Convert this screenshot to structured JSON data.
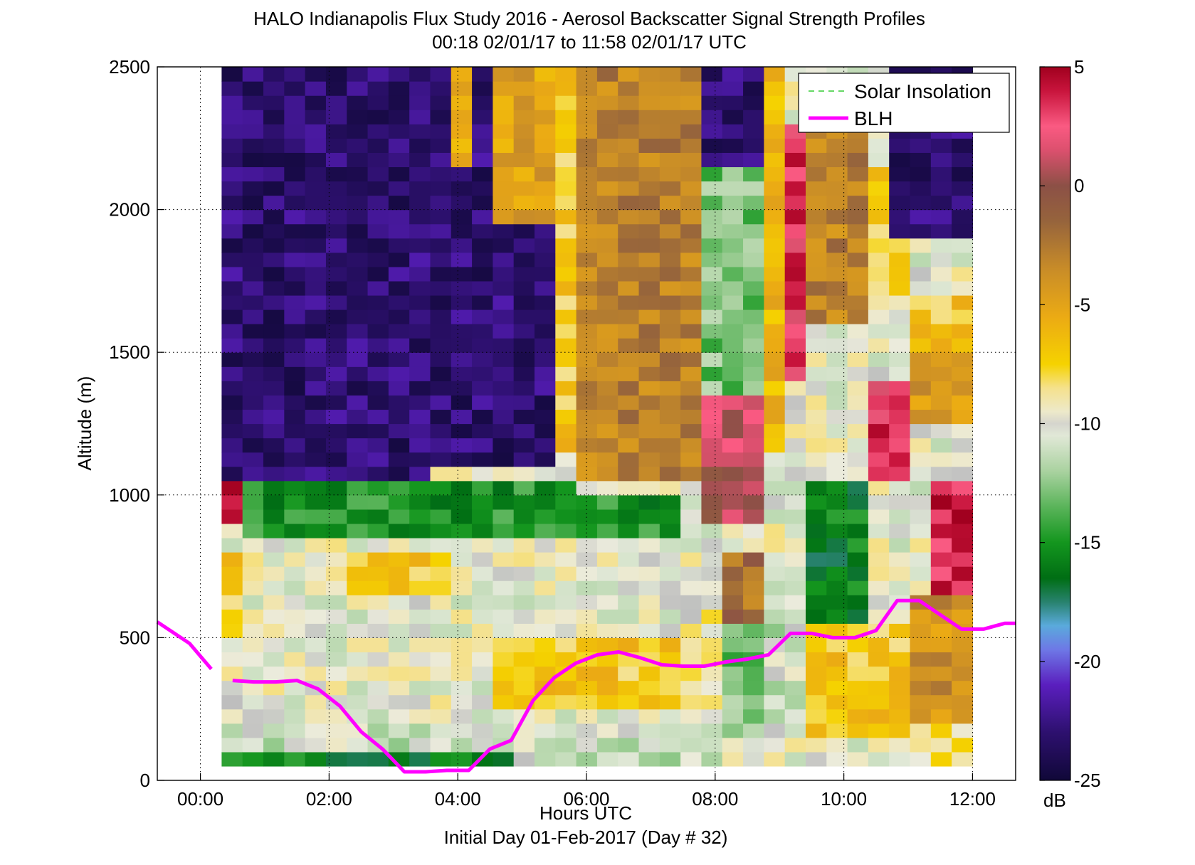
{
  "chart_data": {
    "type": "heatmap",
    "title": "HALO Indianapolis Flux Study 2016 - Aerosol Backscatter Signal Strength Profiles",
    "subtitle": "00:18 02/01/17 to 11:58 02/01/17  UTC",
    "xlabel": "Hours UTC",
    "xlabel2": "Initial Day 01-Feb-2017 (Day # 32)",
    "ylabel": "Altitude (m)",
    "xlim": [
      -0.67,
      12.67
    ],
    "ylim": [
      0,
      2500
    ],
    "x_ticks": [
      0,
      2,
      4,
      6,
      8,
      10,
      12
    ],
    "x_tick_labels": [
      "00:00",
      "02:00",
      "04:00",
      "06:00",
      "08:00",
      "10:00",
      "12:00"
    ],
    "y_ticks": [
      0,
      500,
      1000,
      1500,
      2000,
      2500
    ],
    "y_tick_labels": [
      "0",
      "500",
      "1000",
      "1500",
      "2000",
      "2500"
    ],
    "grid": "dotted",
    "heatmap_x_range": [
      0.33,
      12.0
    ],
    "heatmap_y_range": [
      50,
      2500
    ],
    "columns": 36,
    "rows": 49,
    "colorbar": {
      "min": -25,
      "max": 5,
      "ticks": [
        5,
        0,
        -5,
        -10,
        -15,
        -20,
        -25
      ],
      "tick_labels": [
        "5",
        "0",
        "-5",
        "-10",
        "-15",
        "-20",
        "-25"
      ],
      "unit": "dB"
    },
    "series": [
      {
        "name": "Solar Insolation",
        "style": "dashed",
        "color": "#33cc33",
        "x": [],
        "y": []
      },
      {
        "name": "BLH",
        "style": "solid",
        "color": "#ff00ff",
        "segments": [
          {
            "x": [
              -0.67,
              -0.17,
              0.17
            ],
            "y": [
              555,
              480,
              390
            ]
          },
          {
            "x": [
              0.5,
              0.83,
              1.17,
              1.5,
              1.83,
              2.17,
              2.5,
              2.83,
              3.17,
              3.5,
              3.83,
              4.17,
              4.5,
              4.83,
              5.17,
              5.5,
              5.83,
              6.17,
              6.5,
              6.83,
              7.17,
              7.5,
              7.83,
              8.17,
              8.5,
              8.83,
              9.17,
              9.5,
              9.83,
              10.17,
              10.5,
              10.83,
              11.17,
              11.5,
              11.83,
              12.17,
              12.5,
              12.67
            ],
            "y": [
              350,
              345,
              345,
              350,
              320,
              260,
              170,
              110,
              30,
              30,
              35,
              35,
              110,
              140,
              280,
              360,
              410,
              440,
              450,
              430,
              405,
              400,
              400,
              415,
              425,
              440,
              515,
              515,
              500,
              500,
              525,
              630,
              630,
              580,
              530,
              530,
              550,
              550
            ]
          }
        ]
      }
    ],
    "legend": {
      "position": "top-right",
      "entries": [
        "Solar Insolation",
        "BLH"
      ]
    },
    "anchors": [
      {
        "x0": 0.33,
        "x1": 3.7,
        "y0": 1050,
        "y1": 2500,
        "value": -23
      },
      {
        "x0": 3.7,
        "x1": 5.5,
        "y0": 1100,
        "y1": 2500,
        "value": -23
      },
      {
        "x0": 4.0,
        "x1": 4.2,
        "y0": 2150,
        "y1": 2500,
        "value": -6
      },
      {
        "x0": 4.4,
        "x1": 4.6,
        "y0": 2400,
        "y1": 2500,
        "value": 2
      },
      {
        "x0": 4.6,
        "x1": 5.5,
        "y0": 1950,
        "y1": 2500,
        "value": -5
      },
      {
        "x0": 5.5,
        "x1": 5.9,
        "y0": 1150,
        "y1": 2500,
        "value": -7
      },
      {
        "x0": 5.9,
        "x1": 7.9,
        "y0": 1050,
        "y1": 2500,
        "value": -3
      },
      {
        "x0": 6.4,
        "x1": 6.6,
        "y0": 1650,
        "y1": 1950,
        "value": -1
      },
      {
        "x0": 7.9,
        "x1": 8.6,
        "y0": 2150,
        "y1": 2500,
        "value": -23
      },
      {
        "x0": 7.9,
        "x1": 8.9,
        "y0": 1350,
        "y1": 2150,
        "value": -13
      },
      {
        "x0": 7.9,
        "x1": 8.6,
        "y0": 900,
        "y1": 1350,
        "value": 1
      },
      {
        "x0": 8.9,
        "x1": 9.2,
        "y0": 1150,
        "y1": 2500,
        "value": -6
      },
      {
        "x0": 9.2,
        "x1": 9.5,
        "y0": 1400,
        "y1": 2300,
        "value": 3
      },
      {
        "x0": 9.5,
        "x1": 10.4,
        "y0": 1600,
        "y1": 2400,
        "value": -3
      },
      {
        "x0": 10.4,
        "x1": 11.1,
        "y0": 1700,
        "y1": 2150,
        "value": -7
      },
      {
        "x0": 10.4,
        "x1": 11.1,
        "y0": 1050,
        "y1": 1400,
        "value": 3
      },
      {
        "x0": 10.8,
        "x1": 12.0,
        "y0": 1900,
        "y1": 2500,
        "value": -23
      },
      {
        "x0": 11.0,
        "x1": 12.0,
        "y0": 1500,
        "y1": 1700,
        "value": -7
      },
      {
        "x0": 11.0,
        "x1": 12.0,
        "y0": 1250,
        "y1": 1500,
        "value": -4
      },
      {
        "x0": 11.2,
        "x1": 12.0,
        "y0": 650,
        "y1": 1050,
        "value": 4
      },
      {
        "x0": 0.33,
        "x1": 0.6,
        "y0": 900,
        "y1": 1050,
        "value": 4
      },
      {
        "x0": 0.6,
        "x1": 5.9,
        "y0": 850,
        "y1": 1050,
        "value": -15
      },
      {
        "x0": 5.9,
        "x1": 7.6,
        "y0": 650,
        "y1": 1000,
        "value": -15
      },
      {
        "x0": 9.5,
        "x1": 10.3,
        "y0": 550,
        "y1": 1050,
        "value": -16
      },
      {
        "x0": 0.33,
        "x1": 7.5,
        "y0": 500,
        "y1": 850,
        "value": -10
      },
      {
        "x0": 0.33,
        "x1": 0.8,
        "y0": 350,
        "y1": 800,
        "value": -7
      },
      {
        "x0": 2.4,
        "x1": 3.8,
        "y0": 650,
        "y1": 800,
        "value": -7
      },
      {
        "x0": 0.33,
        "x1": 4.3,
        "y0": 150,
        "y1": 500,
        "value": -10
      },
      {
        "x0": 0.33,
        "x1": 8.0,
        "y0": 50,
        "y1": 200,
        "value": -11
      },
      {
        "x0": 0.33,
        "x1": 5.0,
        "y0": 50,
        "y1": 100,
        "value": -16
      },
      {
        "x0": 4.5,
        "x1": 7.5,
        "y0": 250,
        "y1": 500,
        "value": -7
      },
      {
        "x0": 7.5,
        "x1": 8.0,
        "y0": 200,
        "y1": 600,
        "value": -9
      },
      {
        "x0": 8.0,
        "x1": 8.9,
        "y0": 150,
        "y1": 550,
        "value": -13
      },
      {
        "x0": 8.1,
        "x1": 8.6,
        "y0": 550,
        "y1": 800,
        "value": -2
      },
      {
        "x0": 8.9,
        "x1": 9.5,
        "y0": 200,
        "y1": 700,
        "value": -11
      },
      {
        "x0": 9.5,
        "x1": 11.0,
        "y0": 150,
        "y1": 550,
        "value": -7
      },
      {
        "x0": 11.0,
        "x1": 12.0,
        "y0": 200,
        "y1": 650,
        "value": -4
      },
      {
        "x0": 11.4,
        "x1": 12.0,
        "y0": 50,
        "y1": 200,
        "value": -8
      }
    ]
  }
}
